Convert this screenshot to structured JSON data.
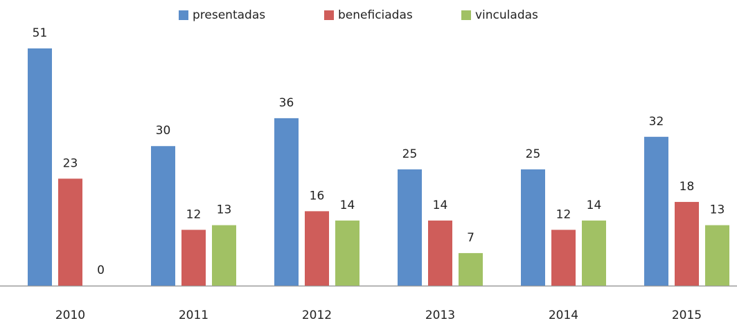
{
  "chart_data": {
    "type": "bar",
    "categories": [
      "2010",
      "2011",
      "2012",
      "2013",
      "2014",
      "2015"
    ],
    "series": [
      {
        "name": "presentadas",
        "color": "#5b8dc9",
        "values": [
          51,
          30,
          36,
          25,
          25,
          32
        ]
      },
      {
        "name": "beneficiadas",
        "color": "#cf5d5a",
        "values": [
          23,
          12,
          16,
          14,
          12,
          18
        ]
      },
      {
        "name": "vinculadas",
        "color": "#a1c164",
        "values": [
          0,
          13,
          14,
          7,
          14,
          13
        ]
      }
    ],
    "legend": "top"
  }
}
